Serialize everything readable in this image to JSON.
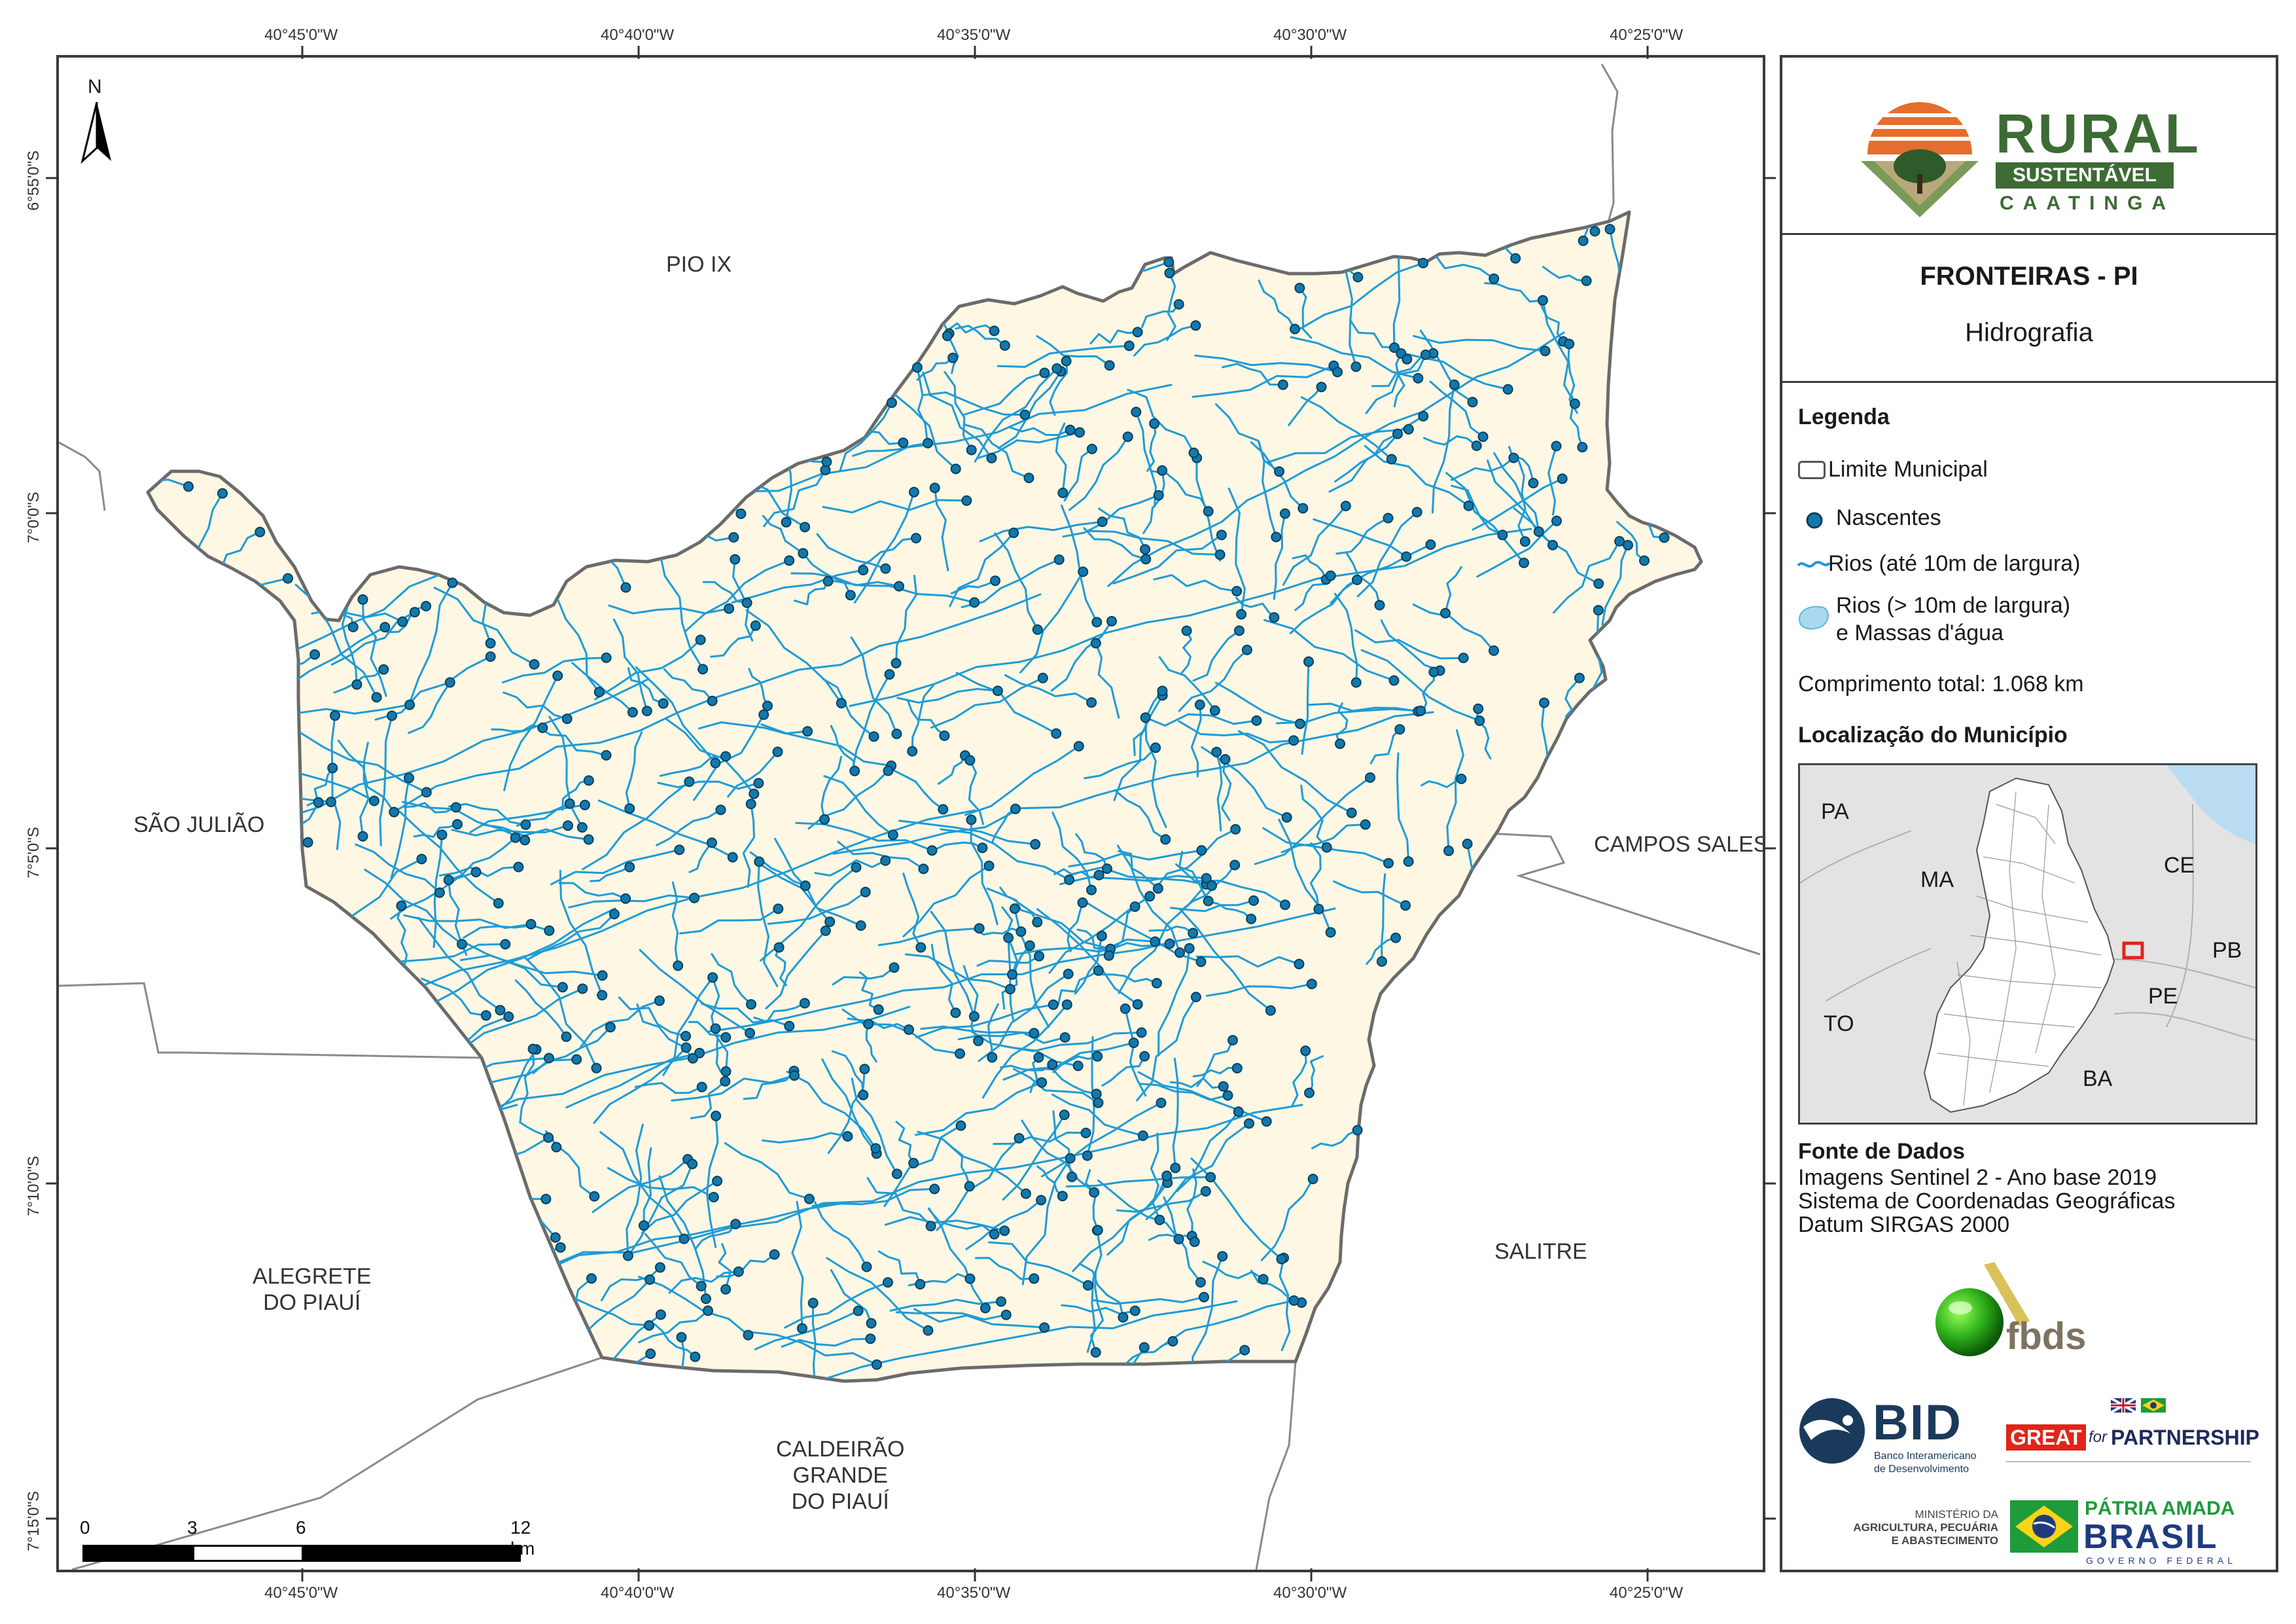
{
  "title": "FRONTEIRAS - PI",
  "subtitle": "Hidrografia",
  "logo": {
    "main": "RURAL",
    "band": "SUSTENTÁVEL",
    "sub": "CAATINGA"
  },
  "legend": {
    "heading": "Legenda",
    "items": [
      {
        "label": "Limite Municipal",
        "icon": "boundary-swatch"
      },
      {
        "label": "Nascentes",
        "icon": "spring-dot"
      },
      {
        "label": "Rios (até 10m de largura)",
        "icon": "river-line"
      },
      {
        "label_line1": "Rios (> 10m de largura)",
        "label_line2": "e Massas d'água",
        "icon": "water-body-swatch"
      }
    ],
    "total_length": "Comprimento total:  1.068 km"
  },
  "location": {
    "heading": "Localização do Município",
    "states": [
      "PA",
      "MA",
      "CE",
      "PB",
      "PE",
      "TO",
      "BA"
    ]
  },
  "sources": {
    "heading": "Fonte de Dados",
    "lines": [
      "Imagens Sentinel 2 - Ano base 2019",
      "Sistema de Coordenadas Geográficas",
      "Datum SIRGAS 2000"
    ]
  },
  "sponsors": {
    "fbds": "fbds",
    "bid": "BID",
    "bid_sub1": "Banco Interamericano",
    "bid_sub2": "de Desenvolvimento",
    "great": "GREAT",
    "for": "for",
    "partnership": "PARTNERSHIP",
    "ministry1": "MINISTÉRIO DA",
    "ministry2": "AGRICULTURA, PECUÁRIA",
    "ministry3": "E ABASTECIMENTO",
    "patria": "PÁTRIA AMADA",
    "brasil": "BRASIL",
    "gov": "GOVERNO FEDERAL"
  },
  "map": {
    "north": "N",
    "lon_top": [
      "40°45'0\"W",
      "40°40'0\"W",
      "40°35'0\"W",
      "40°30'0\"W",
      "40°25'0\"W"
    ],
    "lon_bottom": [
      "40°45'0\"W",
      "40°40'0\"W",
      "40°35'0\"W",
      "40°30'0\"W",
      "40°25'0\"W"
    ],
    "lat_left": [
      "6°55'0\"S",
      "7°0'0\"S",
      "7°5'0\"S",
      "7°10'0\"S",
      "7°15'0\"S"
    ],
    "places": {
      "pio_ix": "PIO IX",
      "sao_juliao": "SÃO JULIÃO",
      "campos_sales": "CAMPOS SALES",
      "alegrete_1": "ALEGRETE",
      "alegrete_2": "DO PIAUÍ",
      "salitre": "SALITRE",
      "caldeirao_1": "CALDEIRÃO",
      "caldeirao_2": "GRANDE",
      "caldeirao_3": "DO PIAUÍ"
    },
    "scale": {
      "labels": [
        "0",
        "3",
        "6",
        "12 km"
      ]
    }
  },
  "colors": {
    "municipality_fill": "#fdf7e3",
    "boundary": "#6b6b6b",
    "river": "#1e9bd7",
    "spring": "#1279ad",
    "water_body": "#a9d8f0",
    "logo_green": "#3d6b34",
    "logo_orange": "#e56d2d",
    "highlight_red": "#e2231a"
  }
}
